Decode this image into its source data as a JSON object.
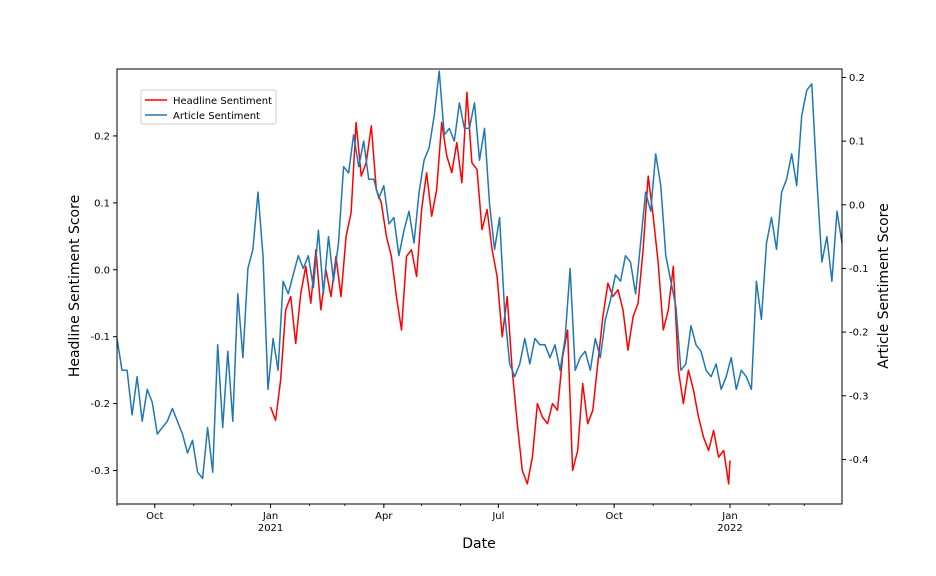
{
  "chart_data": {
    "type": "line",
    "xlabel": "Date",
    "ylabel_left": "Headline Sentiment Score",
    "ylabel_right": "Article Sentiment Score",
    "xlim": [
      "2020-09-01",
      "2022-03-31"
    ],
    "ylim_left": [
      -0.35,
      0.3
    ],
    "ylim_right": [
      -0.47,
      0.2133
    ],
    "xticks": [
      {
        "date": "2020-10-01",
        "label": "Oct",
        "sublabel": ""
      },
      {
        "date": "2021-01-01",
        "label": "Jan",
        "sublabel": "2021"
      },
      {
        "date": "2021-04-01",
        "label": "Apr",
        "sublabel": ""
      },
      {
        "date": "2021-07-01",
        "label": "Jul",
        "sublabel": ""
      },
      {
        "date": "2021-10-01",
        "label": "Oct",
        "sublabel": ""
      },
      {
        "date": "2022-01-01",
        "label": "Jan",
        "sublabel": "2022"
      }
    ],
    "yticks_left": [
      "-0.3",
      "-0.2",
      "-0.1",
      "0.0",
      "0.1",
      "0.2"
    ],
    "yticks_left_values": [
      -0.3,
      -0.2,
      -0.1,
      0.0,
      0.1,
      0.2
    ],
    "yticks_right": [
      "-0.4",
      "-0.3",
      "-0.2",
      "-0.1",
      "0.0",
      "0.1",
      "0.2"
    ],
    "yticks_right_values": [
      -0.4,
      -0.3,
      -0.2,
      -0.1,
      0.0,
      0.1,
      0.2
    ],
    "grid": false,
    "legend": "upper-left",
    "series": [
      {
        "name": "Headline Sentiment",
        "axis": "left",
        "color": "#ff0000",
        "points": [
          [
            "2021-01-01",
            -0.205
          ],
          [
            "2021-01-05",
            -0.225
          ],
          [
            "2021-01-09",
            -0.165
          ],
          [
            "2021-01-13",
            -0.06
          ],
          [
            "2021-01-17",
            -0.04
          ],
          [
            "2021-01-21",
            -0.11
          ],
          [
            "2021-01-25",
            -0.035
          ],
          [
            "2021-01-29",
            0.005
          ],
          [
            "2021-02-02",
            -0.05
          ],
          [
            "2021-02-06",
            0.03
          ],
          [
            "2021-02-10",
            -0.06
          ],
          [
            "2021-02-14",
            0.0
          ],
          [
            "2021-02-18",
            -0.04
          ],
          [
            "2021-02-22",
            0.02
          ],
          [
            "2021-02-26",
            -0.04
          ],
          [
            "2021-03-02",
            0.05
          ],
          [
            "2021-03-06",
            0.085
          ],
          [
            "2021-03-10",
            0.22
          ],
          [
            "2021-03-14",
            0.14
          ],
          [
            "2021-03-18",
            0.16
          ],
          [
            "2021-03-22",
            0.215
          ],
          [
            "2021-03-26",
            0.12
          ],
          [
            "2021-03-30",
            0.1
          ],
          [
            "2021-04-03",
            0.05
          ],
          [
            "2021-04-07",
            0.02
          ],
          [
            "2021-04-11",
            -0.04
          ],
          [
            "2021-04-15",
            -0.09
          ],
          [
            "2021-04-19",
            0.02
          ],
          [
            "2021-04-23",
            0.03
          ],
          [
            "2021-04-27",
            -0.01
          ],
          [
            "2021-05-01",
            0.09
          ],
          [
            "2021-05-05",
            0.145
          ],
          [
            "2021-05-09",
            0.08
          ],
          [
            "2021-05-13",
            0.12
          ],
          [
            "2021-05-17",
            0.22
          ],
          [
            "2021-05-21",
            0.17
          ],
          [
            "2021-05-25",
            0.145
          ],
          [
            "2021-05-29",
            0.19
          ],
          [
            "2021-06-02",
            0.13
          ],
          [
            "2021-06-06",
            0.265
          ],
          [
            "2021-06-10",
            0.16
          ],
          [
            "2021-06-14",
            0.15
          ],
          [
            "2021-06-18",
            0.06
          ],
          [
            "2021-06-22",
            0.09
          ],
          [
            "2021-06-26",
            0.03
          ],
          [
            "2021-06-30",
            -0.01
          ],
          [
            "2021-07-04",
            -0.1
          ],
          [
            "2021-07-08",
            -0.04
          ],
          [
            "2021-07-12",
            -0.15
          ],
          [
            "2021-07-16",
            -0.23
          ],
          [
            "2021-07-20",
            -0.3
          ],
          [
            "2021-07-24",
            -0.32
          ],
          [
            "2021-07-28",
            -0.28
          ],
          [
            "2021-08-01",
            -0.2
          ],
          [
            "2021-08-05",
            -0.22
          ],
          [
            "2021-08-09",
            -0.23
          ],
          [
            "2021-08-13",
            -0.2
          ],
          [
            "2021-08-17",
            -0.21
          ],
          [
            "2021-08-21",
            -0.13
          ],
          [
            "2021-08-25",
            -0.09
          ],
          [
            "2021-08-29",
            -0.3
          ],
          [
            "2021-09-02",
            -0.27
          ],
          [
            "2021-09-06",
            -0.17
          ],
          [
            "2021-09-10",
            -0.23
          ],
          [
            "2021-09-14",
            -0.21
          ],
          [
            "2021-09-18",
            -0.14
          ],
          [
            "2021-09-22",
            -0.07
          ],
          [
            "2021-09-26",
            -0.02
          ],
          [
            "2021-09-30",
            -0.04
          ],
          [
            "2021-10-04",
            -0.03
          ],
          [
            "2021-10-08",
            -0.06
          ],
          [
            "2021-10-12",
            -0.12
          ],
          [
            "2021-10-16",
            -0.07
          ],
          [
            "2021-10-20",
            -0.05
          ],
          [
            "2021-10-24",
            0.03
          ],
          [
            "2021-10-28",
            0.14
          ],
          [
            "2021-11-01",
            0.08
          ],
          [
            "2021-11-05",
            0.01
          ],
          [
            "2021-11-09",
            -0.09
          ],
          [
            "2021-11-13",
            -0.06
          ],
          [
            "2021-11-17",
            0.005
          ],
          [
            "2021-11-21",
            -0.15
          ],
          [
            "2021-11-25",
            -0.2
          ],
          [
            "2021-11-29",
            -0.15
          ],
          [
            "2021-12-03",
            -0.18
          ],
          [
            "2021-12-07",
            -0.22
          ],
          [
            "2021-12-11",
            -0.25
          ],
          [
            "2021-12-15",
            -0.27
          ],
          [
            "2021-12-19",
            -0.24
          ],
          [
            "2021-12-23",
            -0.28
          ],
          [
            "2021-12-27",
            -0.27
          ],
          [
            "2021-12-31",
            -0.32
          ],
          [
            "2022-01-01",
            -0.285
          ]
        ]
      },
      {
        "name": "Article Sentiment",
        "axis": "right",
        "color": "#1f77b4",
        "points": [
          [
            "2020-09-01",
            -0.21
          ],
          [
            "2020-09-05",
            -0.26
          ],
          [
            "2020-09-09",
            -0.26
          ],
          [
            "2020-09-13",
            -0.33
          ],
          [
            "2020-09-17",
            -0.27
          ],
          [
            "2020-09-21",
            -0.34
          ],
          [
            "2020-09-25",
            -0.29
          ],
          [
            "2020-09-29",
            -0.31
          ],
          [
            "2020-10-03",
            -0.36
          ],
          [
            "2020-10-07",
            -0.35
          ],
          [
            "2020-10-11",
            -0.34
          ],
          [
            "2020-10-15",
            -0.32
          ],
          [
            "2020-10-19",
            -0.34
          ],
          [
            "2020-10-23",
            -0.36
          ],
          [
            "2020-10-27",
            -0.39
          ],
          [
            "2020-10-31",
            -0.37
          ],
          [
            "2020-11-04",
            -0.42
          ],
          [
            "2020-11-08",
            -0.43
          ],
          [
            "2020-11-12",
            -0.35
          ],
          [
            "2020-11-16",
            -0.42
          ],
          [
            "2020-11-20",
            -0.22
          ],
          [
            "2020-11-24",
            -0.35
          ],
          [
            "2020-11-28",
            -0.23
          ],
          [
            "2020-12-02",
            -0.34
          ],
          [
            "2020-12-06",
            -0.14
          ],
          [
            "2020-12-10",
            -0.24
          ],
          [
            "2020-12-14",
            -0.1
          ],
          [
            "2020-12-18",
            -0.07
          ],
          [
            "2020-12-22",
            0.02
          ],
          [
            "2020-12-26",
            -0.08
          ],
          [
            "2020-12-30",
            -0.29
          ],
          [
            "2021-01-03",
            -0.21
          ],
          [
            "2021-01-07",
            -0.26
          ],
          [
            "2021-01-11",
            -0.12
          ],
          [
            "2021-01-15",
            -0.14
          ],
          [
            "2021-01-19",
            -0.11
          ],
          [
            "2021-01-23",
            -0.08
          ],
          [
            "2021-01-27",
            -0.1
          ],
          [
            "2021-01-31",
            -0.08
          ],
          [
            "2021-02-04",
            -0.13
          ],
          [
            "2021-02-08",
            -0.04
          ],
          [
            "2021-02-12",
            -0.14
          ],
          [
            "2021-02-16",
            -0.05
          ],
          [
            "2021-02-20",
            -0.12
          ],
          [
            "2021-02-24",
            -0.06
          ],
          [
            "2021-02-28",
            0.06
          ],
          [
            "2021-03-04",
            0.05
          ],
          [
            "2021-03-08",
            0.11
          ],
          [
            "2021-03-12",
            0.06
          ],
          [
            "2021-03-16",
            0.1
          ],
          [
            "2021-03-20",
            0.04
          ],
          [
            "2021-03-24",
            0.04
          ],
          [
            "2021-03-28",
            0.01
          ],
          [
            "2021-04-01",
            0.03
          ],
          [
            "2021-04-05",
            -0.03
          ],
          [
            "2021-04-09",
            -0.02
          ],
          [
            "2021-04-13",
            -0.08
          ],
          [
            "2021-04-17",
            -0.04
          ],
          [
            "2021-04-21",
            -0.01
          ],
          [
            "2021-04-25",
            -0.06
          ],
          [
            "2021-04-29",
            0.02
          ],
          [
            "2021-05-03",
            0.07
          ],
          [
            "2021-05-07",
            0.09
          ],
          [
            "2021-05-11",
            0.14
          ],
          [
            "2021-05-15",
            0.21
          ],
          [
            "2021-05-19",
            0.11
          ],
          [
            "2021-05-23",
            0.12
          ],
          [
            "2021-05-27",
            0.1
          ],
          [
            "2021-05-31",
            0.16
          ],
          [
            "2021-06-04",
            0.12
          ],
          [
            "2021-06-08",
            0.12
          ],
          [
            "2021-06-12",
            0.16
          ],
          [
            "2021-06-16",
            0.07
          ],
          [
            "2021-06-20",
            0.12
          ],
          [
            "2021-06-24",
            0.0
          ],
          [
            "2021-06-28",
            -0.07
          ],
          [
            "2021-07-02",
            -0.02
          ],
          [
            "2021-07-06",
            -0.17
          ],
          [
            "2021-07-10",
            -0.25
          ],
          [
            "2021-07-14",
            -0.27
          ],
          [
            "2021-07-18",
            -0.25
          ],
          [
            "2021-07-22",
            -0.21
          ],
          [
            "2021-07-26",
            -0.25
          ],
          [
            "2021-07-30",
            -0.21
          ],
          [
            "2021-08-03",
            -0.22
          ],
          [
            "2021-08-07",
            -0.22
          ],
          [
            "2021-08-11",
            -0.24
          ],
          [
            "2021-08-15",
            -0.22
          ],
          [
            "2021-08-19",
            -0.26
          ],
          [
            "2021-08-23",
            -0.21
          ],
          [
            "2021-08-27",
            -0.1
          ],
          [
            "2021-08-31",
            -0.26
          ],
          [
            "2021-09-04",
            -0.24
          ],
          [
            "2021-09-08",
            -0.23
          ],
          [
            "2021-09-12",
            -0.26
          ],
          [
            "2021-09-16",
            -0.21
          ],
          [
            "2021-09-20",
            -0.24
          ],
          [
            "2021-09-24",
            -0.18
          ],
          [
            "2021-09-28",
            -0.15
          ],
          [
            "2021-10-02",
            -0.11
          ],
          [
            "2021-10-06",
            -0.12
          ],
          [
            "2021-10-10",
            -0.08
          ],
          [
            "2021-10-14",
            -0.09
          ],
          [
            "2021-10-18",
            -0.14
          ],
          [
            "2021-10-22",
            -0.06
          ],
          [
            "2021-10-26",
            0.02
          ],
          [
            "2021-10-30",
            -0.01
          ],
          [
            "2021-11-03",
            0.08
          ],
          [
            "2021-11-07",
            0.03
          ],
          [
            "2021-11-11",
            -0.08
          ],
          [
            "2021-11-15",
            -0.12
          ],
          [
            "2021-11-19",
            -0.16
          ],
          [
            "2021-11-23",
            -0.26
          ],
          [
            "2021-11-27",
            -0.25
          ],
          [
            "2021-12-01",
            -0.19
          ],
          [
            "2021-12-05",
            -0.22
          ],
          [
            "2021-12-09",
            -0.23
          ],
          [
            "2021-12-13",
            -0.26
          ],
          [
            "2021-12-17",
            -0.27
          ],
          [
            "2021-12-21",
            -0.25
          ],
          [
            "2021-12-25",
            -0.29
          ],
          [
            "2021-12-29",
            -0.27
          ],
          [
            "2022-01-02",
            -0.24
          ],
          [
            "2022-01-06",
            -0.29
          ],
          [
            "2022-01-10",
            -0.26
          ],
          [
            "2022-01-14",
            -0.27
          ],
          [
            "2022-01-18",
            -0.29
          ],
          [
            "2022-01-22",
            -0.12
          ],
          [
            "2022-01-26",
            -0.18
          ],
          [
            "2022-01-30",
            -0.06
          ],
          [
            "2022-02-03",
            -0.02
          ],
          [
            "2022-02-07",
            -0.07
          ],
          [
            "2022-02-11",
            0.02
          ],
          [
            "2022-02-15",
            0.04
          ],
          [
            "2022-02-19",
            0.08
          ],
          [
            "2022-02-23",
            0.03
          ],
          [
            "2022-02-27",
            0.14
          ],
          [
            "2022-03-03",
            0.18
          ],
          [
            "2022-03-07",
            0.19
          ],
          [
            "2022-03-11",
            0.04
          ],
          [
            "2022-03-15",
            -0.09
          ],
          [
            "2022-03-19",
            -0.05
          ],
          [
            "2022-03-23",
            -0.12
          ],
          [
            "2022-03-27",
            -0.01
          ],
          [
            "2022-03-31",
            -0.06
          ]
        ]
      }
    ]
  }
}
